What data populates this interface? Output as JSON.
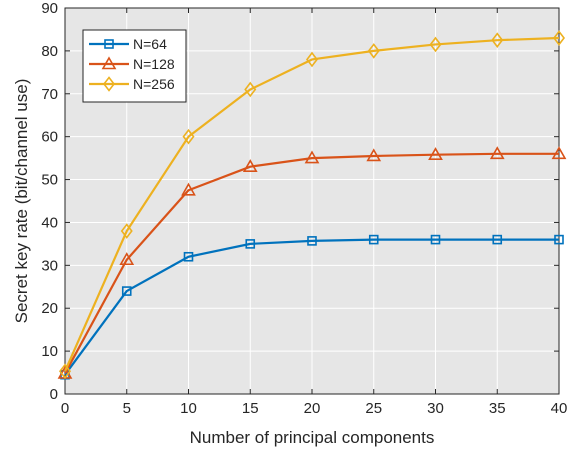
{
  "chart_data": {
    "type": "line",
    "title": "",
    "xlabel": "Number of principal components",
    "ylabel": "Secret key rate (bit/channel use)",
    "xlim": [
      0,
      40
    ],
    "ylim": [
      0,
      90
    ],
    "x_ticks": [
      0,
      5,
      10,
      15,
      20,
      25,
      30,
      35,
      40
    ],
    "y_ticks": [
      0,
      10,
      20,
      30,
      40,
      50,
      60,
      70,
      80,
      90
    ],
    "grid": true,
    "legend_position": "top-left",
    "plot_background": "#e6e6e6",
    "x": [
      0,
      5,
      10,
      15,
      20,
      25,
      30,
      35,
      40
    ],
    "series": [
      {
        "name": "N=64",
        "marker": "square",
        "color": "#0072bd",
        "values": [
          4.5,
          24,
          32,
          35,
          35.7,
          36,
          36,
          36,
          36
        ]
      },
      {
        "name": "N=128",
        "marker": "triangle",
        "color": "#d95319",
        "values": [
          4.8,
          31.3,
          47.5,
          53,
          55,
          55.5,
          55.8,
          56,
          56
        ]
      },
      {
        "name": "N=256",
        "marker": "diamond",
        "color": "#edb120",
        "values": [
          5.3,
          38,
          60,
          71,
          78,
          80,
          81.5,
          82.5,
          83
        ]
      }
    ]
  }
}
